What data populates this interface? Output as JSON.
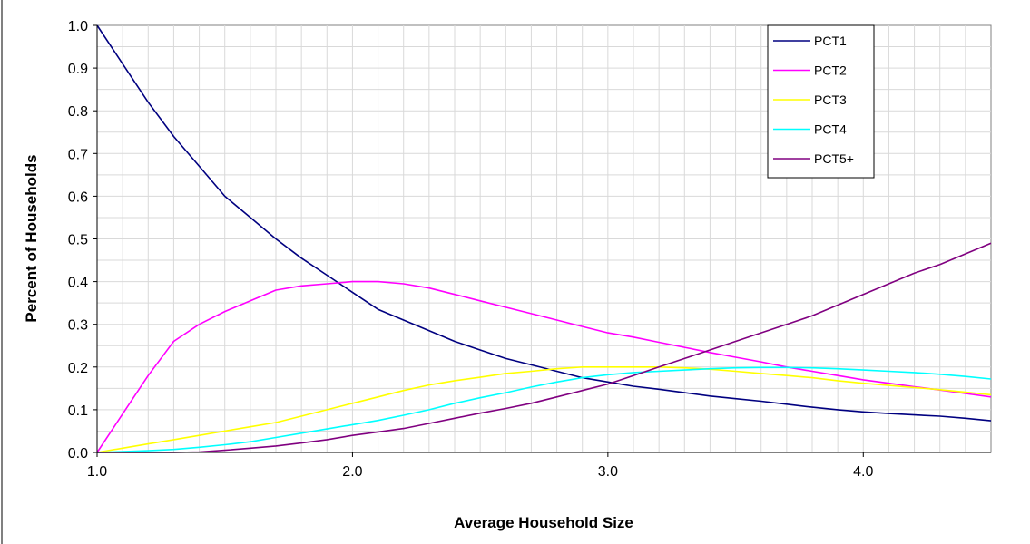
{
  "chart_data": {
    "type": "line",
    "title": "",
    "xlabel": "Average Household Size",
    "ylabel": "Percent of Households",
    "xlim": [
      1.0,
      4.5
    ],
    "ylim": [
      0.0,
      1.0
    ],
    "x_ticks": [
      1.0,
      2.0,
      3.0,
      4.0
    ],
    "x_tick_labels": [
      "1.0",
      "2.0",
      "3.0",
      "4.0"
    ],
    "y_ticks": [
      0.0,
      0.1,
      0.2,
      0.3,
      0.4,
      0.5,
      0.6,
      0.7,
      0.8,
      0.9,
      1.0
    ],
    "y_tick_labels": [
      "0.0",
      "0.1",
      "0.2",
      "0.3",
      "0.4",
      "0.5",
      "0.6",
      "0.7",
      "0.8",
      "0.9",
      "1.0"
    ],
    "grid": true,
    "legend_position": "top-right",
    "x": [
      1.0,
      1.1,
      1.2,
      1.3,
      1.4,
      1.5,
      1.6,
      1.7,
      1.8,
      1.9,
      2.0,
      2.1,
      2.2,
      2.3,
      2.4,
      2.5,
      2.6,
      2.7,
      2.8,
      2.9,
      3.0,
      3.1,
      3.2,
      3.3,
      3.4,
      3.5,
      3.6,
      3.7,
      3.8,
      3.9,
      4.0,
      4.1,
      4.2,
      4.3,
      4.4,
      4.5
    ],
    "series": [
      {
        "name": "PCT1",
        "color": "#000080",
        "values": [
          1.0,
          0.91,
          0.82,
          0.74,
          0.67,
          0.6,
          0.55,
          0.5,
          0.455,
          0.415,
          0.375,
          0.335,
          0.31,
          0.285,
          0.26,
          0.24,
          0.22,
          0.205,
          0.19,
          0.175,
          0.165,
          0.155,
          0.148,
          0.14,
          0.132,
          0.126,
          0.12,
          0.113,
          0.106,
          0.1,
          0.095,
          0.091,
          0.088,
          0.085,
          0.08,
          0.074
        ]
      },
      {
        "name": "PCT2",
        "color": "#FF00FF",
        "values": [
          0.0,
          0.09,
          0.18,
          0.26,
          0.3,
          0.33,
          0.355,
          0.38,
          0.39,
          0.395,
          0.4,
          0.4,
          0.395,
          0.385,
          0.37,
          0.355,
          0.34,
          0.325,
          0.31,
          0.295,
          0.28,
          0.27,
          0.258,
          0.246,
          0.234,
          0.223,
          0.212,
          0.2,
          0.19,
          0.18,
          0.17,
          0.162,
          0.154,
          0.146,
          0.138,
          0.13
        ]
      },
      {
        "name": "PCT3",
        "color": "#FFFF00",
        "values": [
          0.0,
          0.01,
          0.02,
          0.03,
          0.04,
          0.05,
          0.06,
          0.07,
          0.085,
          0.1,
          0.115,
          0.13,
          0.145,
          0.158,
          0.168,
          0.176,
          0.185,
          0.19,
          0.196,
          0.2,
          0.2,
          0.2,
          0.2,
          0.198,
          0.195,
          0.19,
          0.185,
          0.18,
          0.175,
          0.168,
          0.162,
          0.157,
          0.152,
          0.147,
          0.141,
          0.135
        ]
      },
      {
        "name": "PCT4",
        "color": "#00FFFF",
        "values": [
          0.0,
          0.002,
          0.004,
          0.007,
          0.012,
          0.018,
          0.025,
          0.035,
          0.045,
          0.055,
          0.065,
          0.075,
          0.087,
          0.1,
          0.115,
          0.128,
          0.14,
          0.153,
          0.165,
          0.175,
          0.182,
          0.187,
          0.19,
          0.193,
          0.196,
          0.198,
          0.199,
          0.199,
          0.198,
          0.196,
          0.193,
          0.19,
          0.187,
          0.183,
          0.178,
          0.172
        ]
      },
      {
        "name": "PCT5+",
        "color": "#800080",
        "values": [
          0.0,
          0.0,
          0.0,
          0.0,
          0.001,
          0.005,
          0.01,
          0.015,
          0.022,
          0.03,
          0.04,
          0.048,
          0.056,
          0.068,
          0.08,
          0.092,
          0.103,
          0.115,
          0.13,
          0.145,
          0.16,
          0.18,
          0.2,
          0.22,
          0.24,
          0.26,
          0.28,
          0.3,
          0.32,
          0.345,
          0.37,
          0.395,
          0.42,
          0.44,
          0.465,
          0.49
        ]
      }
    ]
  }
}
